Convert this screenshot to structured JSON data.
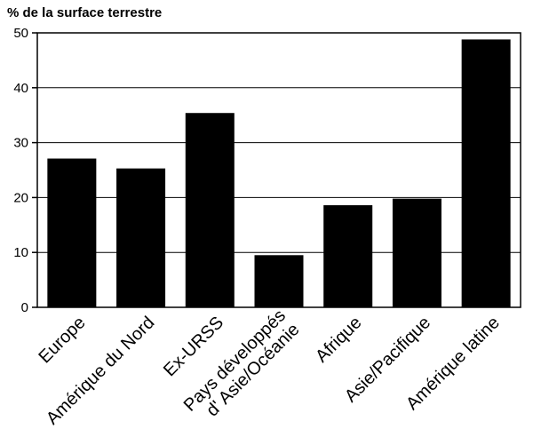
{
  "chart_data": {
    "type": "bar",
    "title": "",
    "ylabel": "% de la surface terrestre",
    "xlabel": "",
    "ylim": [
      0,
      50
    ],
    "yticks": [
      0,
      10,
      20,
      30,
      40,
      50
    ],
    "grid": true,
    "categories": [
      [
        "Europe"
      ],
      [
        "Amérique du Nord"
      ],
      [
        "Ex-URSS"
      ],
      [
        "Pays développés",
        "d' Asie/Océanie"
      ],
      [
        "Afrique"
      ],
      [
        "Asie/Pacifique"
      ],
      [
        "Amérique latine"
      ]
    ],
    "values": [
      27.1,
      25.3,
      35.4,
      9.5,
      18.6,
      19.8,
      48.8
    ],
    "bar_color": "#000000"
  }
}
